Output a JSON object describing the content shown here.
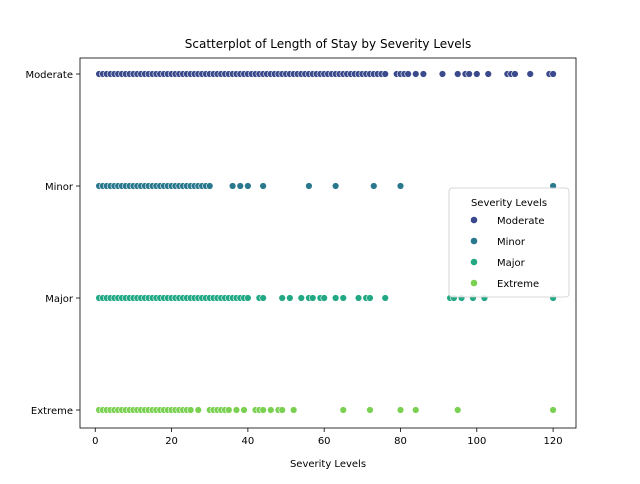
{
  "chart_data": {
    "type": "scatter",
    "title": "Scatterplot of Length of Stay by Severity Levels",
    "xlabel": "Severity Levels",
    "ylabel": "",
    "xlim": [
      -4,
      126
    ],
    "xticks": [
      0,
      20,
      40,
      60,
      80,
      100,
      120
    ],
    "categories": [
      "Moderate",
      "Minor",
      "Major",
      "Extreme"
    ],
    "legend": {
      "title": "Severity Levels",
      "placement": "right"
    },
    "series": [
      {
        "name": "Moderate",
        "color": "#3b4a8c",
        "x": [
          1,
          2,
          3,
          4,
          5,
          6,
          7,
          8,
          9,
          10,
          11,
          12,
          13,
          14,
          15,
          16,
          17,
          18,
          19,
          20,
          21,
          22,
          23,
          24,
          25,
          26,
          27,
          28,
          29,
          30,
          31,
          32,
          33,
          34,
          35,
          36,
          37,
          38,
          39,
          40,
          41,
          42,
          43,
          44,
          45,
          46,
          47,
          48,
          49,
          50,
          51,
          52,
          53,
          54,
          55,
          56,
          57,
          58,
          59,
          60,
          61,
          62,
          63,
          64,
          65,
          66,
          67,
          68,
          69,
          70,
          71,
          72,
          73,
          74,
          75,
          76,
          79,
          80,
          81,
          82,
          84,
          86,
          91,
          95,
          97,
          98,
          100,
          103,
          108,
          109,
          110,
          114,
          119,
          120
        ]
      },
      {
        "name": "Minor",
        "color": "#2a788e",
        "x": [
          1,
          2,
          3,
          4,
          5,
          6,
          7,
          8,
          9,
          10,
          11,
          12,
          13,
          14,
          15,
          16,
          17,
          18,
          19,
          20,
          21,
          22,
          23,
          24,
          25,
          26,
          27,
          28,
          29,
          30,
          36,
          38,
          40,
          44,
          56,
          63,
          73,
          80,
          120
        ]
      },
      {
        "name": "Major",
        "color": "#22a884",
        "x": [
          1,
          2,
          3,
          4,
          5,
          6,
          7,
          8,
          9,
          10,
          11,
          12,
          13,
          14,
          15,
          16,
          17,
          18,
          19,
          20,
          21,
          22,
          23,
          24,
          25,
          26,
          27,
          28,
          29,
          30,
          31,
          32,
          33,
          34,
          35,
          36,
          37,
          38,
          39,
          40,
          43,
          44,
          49,
          51,
          54,
          56,
          57,
          59,
          60,
          63,
          65,
          69,
          71,
          72,
          76,
          93,
          94,
          96,
          99,
          102,
          120
        ]
      },
      {
        "name": "Extreme",
        "color": "#7ad151",
        "x": [
          1,
          2,
          3,
          4,
          5,
          6,
          7,
          8,
          9,
          10,
          11,
          12,
          13,
          14,
          15,
          16,
          17,
          18,
          19,
          20,
          21,
          22,
          23,
          24,
          25,
          27,
          30,
          31,
          32,
          33,
          34,
          35,
          37,
          39,
          42,
          43,
          44,
          46,
          48,
          49,
          52,
          65,
          72,
          80,
          84,
          95,
          120
        ]
      }
    ]
  }
}
